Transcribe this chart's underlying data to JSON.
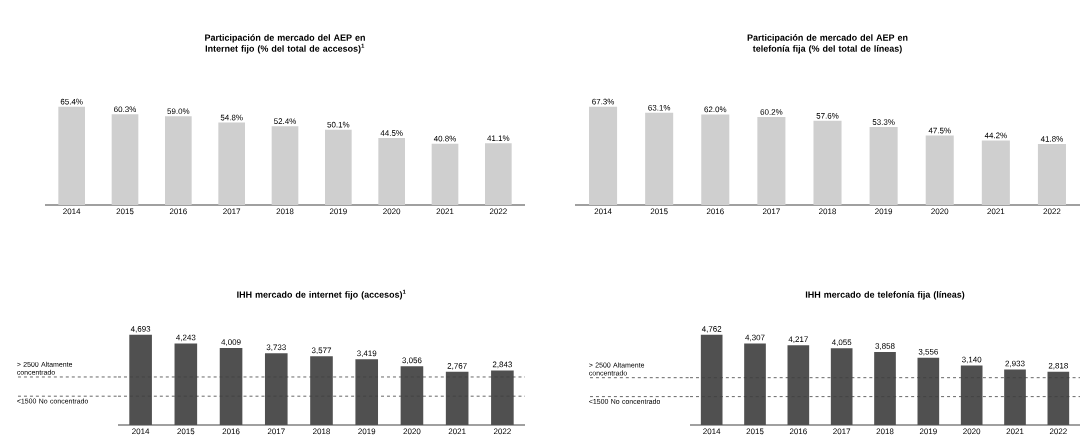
{
  "chart_data": [
    {
      "type": "bar",
      "title": "Participación de mercado del AEP en Internet fijo (% del total de accesos)$^{1}$",
      "categories": [
        "2014",
        "2015",
        "2016",
        "2017",
        "2018",
        "2019",
        "2020",
        "2021",
        "2022"
      ],
      "values": [
        65.4,
        60.3,
        59.0,
        54.8,
        52.4,
        50.1,
        44.5,
        40.8,
        41.1
      ],
      "value_labels": [
        "65.4%",
        "60.3%",
        "59.0%",
        "54.8%",
        "52.4%",
        "50.1%",
        "44.5%",
        "40.8%",
        "41.1%"
      ],
      "data_labels": true,
      "color": "#cfcfcf"
    },
    {
      "type": "bar",
      "title": "Participación de mercado del AEP en telefonía fija (% del total de líneas)",
      "categories": [
        "2014",
        "2015",
        "2016",
        "2017",
        "2018",
        "2019",
        "2020",
        "2021",
        "2022"
      ],
      "values": [
        67.3,
        63.1,
        62.0,
        60.2,
        57.6,
        53.3,
        47.5,
        44.2,
        41.8
      ],
      "value_labels": [
        "67.3%",
        "63.1%",
        "62.0%",
        "60.2%",
        "57.6%",
        "53.3%",
        "47.5%",
        "44.2%",
        "41.8%"
      ],
      "data_labels": true,
      "color": "#cfcfcf"
    },
    {
      "type": "bar",
      "title": "IHH mercado de internet fijo (accesos)$^{1}$",
      "categories": [
        "2014",
        "2015",
        "2016",
        "2017",
        "2018",
        "2019",
        "2020",
        "2021",
        "2022"
      ],
      "values": [
        4693,
        4243,
        4009,
        3733,
        3577,
        3419,
        3056,
        2767,
        2843
      ],
      "value_labels": [
        "4,693",
        "4,243",
        "4,009",
        "3,733",
        "3,577",
        "3,419",
        "3,056",
        "2,767",
        "2,843"
      ],
      "data_labels": true,
      "color": "#505050",
      "ref_lines": [
        {
          "axis": "y",
          "value": 2500,
          "label": "> 2500 Altamente concentrado",
          "line_style": "dashed",
          "color": "#404040"
        },
        {
          "axis": "y",
          "value": 1500,
          "label": "<1500 No concentrado",
          "line_style": "dashed",
          "color": "#404040"
        }
      ]
    },
    {
      "type": "bar",
      "title": "IHH mercado de telefonía fija (líneas)",
      "categories": [
        "2014",
        "2015",
        "2016",
        "2017",
        "2018",
        "2019",
        "2020",
        "2021",
        "2022"
      ],
      "values": [
        4762,
        4307,
        4217,
        4055,
        3858,
        3556,
        3140,
        2933,
        2818
      ],
      "value_labels": [
        "4,762",
        "4,307",
        "4,217",
        "4,055",
        "3,858",
        "3,556",
        "3,140",
        "2,933",
        "2,818"
      ],
      "data_labels": true,
      "color": "#505050",
      "ref_lines": [
        {
          "axis": "y",
          "value": 2500,
          "label": "> 2500 Altamente concentrado",
          "line_style": "dashed",
          "color": "#404040"
        },
        {
          "axis": "y",
          "value": 1500,
          "label": "<1500 No concentrado",
          "line_style": "dashed",
          "color": "#404040"
        }
      ]
    }
  ]
}
